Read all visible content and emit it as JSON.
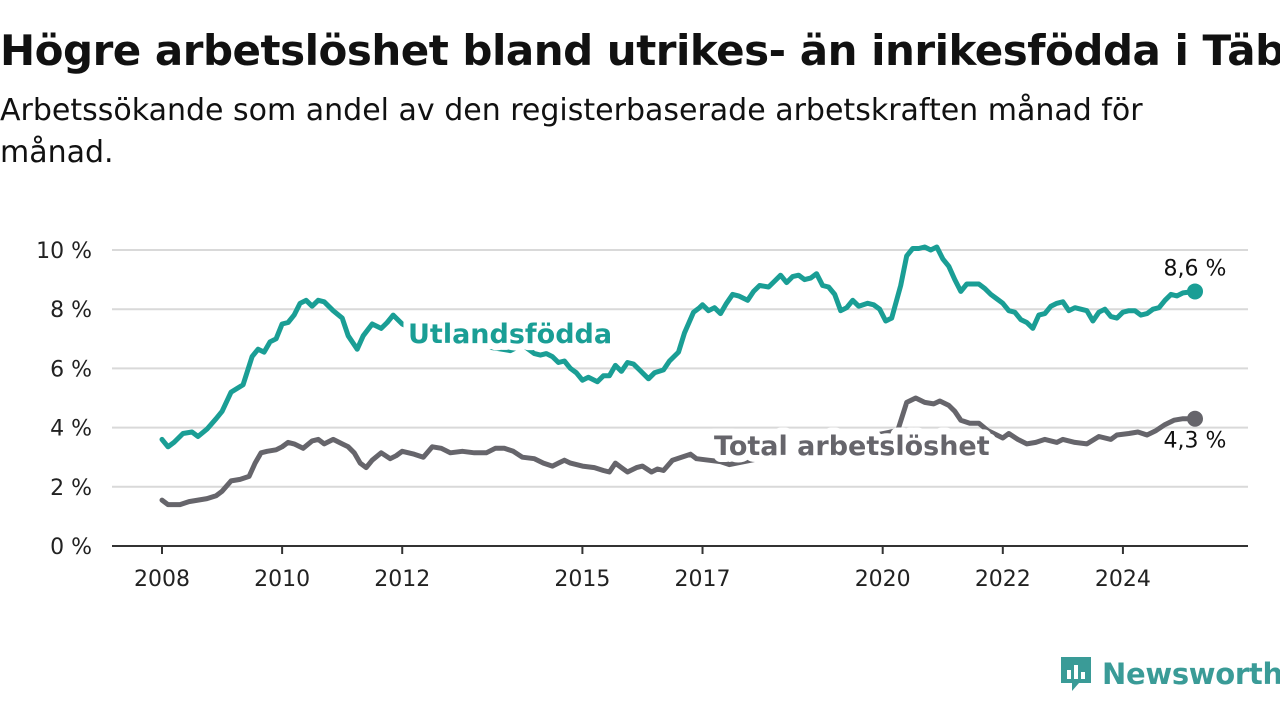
{
  "title": "Högre arbetslöshet bland utrikes- än inrikesfödda i Täby",
  "subtitle": "Arbetssökande som andel av den registerbaserade arbetskraften månad för månad.",
  "brand": {
    "name": "Newsworthy",
    "color": "#3a9b97"
  },
  "chart_data": {
    "type": "line",
    "title": "",
    "xlabel": "",
    "ylabel": "",
    "ylim": [
      0,
      10
    ],
    "xlim": [
      2008.0,
      2025.3
    ],
    "grid": true,
    "y_ticks": [
      {
        "value": 0,
        "label": "0 %"
      },
      {
        "value": 2,
        "label": "2 %"
      },
      {
        "value": 4,
        "label": "4 %"
      },
      {
        "value": 6,
        "label": "6 %"
      },
      {
        "value": 8,
        "label": "8 %"
      },
      {
        "value": 10,
        "label": "10 %"
      }
    ],
    "x_ticks": [
      {
        "value": 2008,
        "label": "2008"
      },
      {
        "value": 2010,
        "label": "2010"
      },
      {
        "value": 2012,
        "label": "2012"
      },
      {
        "value": 2015,
        "label": "2015"
      },
      {
        "value": 2017,
        "label": "2017"
      },
      {
        "value": 2020,
        "label": "2020"
      },
      {
        "value": 2022,
        "label": "2022"
      },
      {
        "value": 2024,
        "label": "2024"
      }
    ],
    "series": [
      {
        "name": "Utlandsfödda",
        "color": "#1a9e95",
        "end_label": "8,6 %",
        "points": [
          [
            2008.0,
            3.6
          ],
          [
            2008.1,
            3.35
          ],
          [
            2008.2,
            3.5
          ],
          [
            2008.35,
            3.8
          ],
          [
            2008.5,
            3.85
          ],
          [
            2008.6,
            3.7
          ],
          [
            2008.75,
            3.95
          ],
          [
            2008.9,
            4.3
          ],
          [
            2009.0,
            4.55
          ],
          [
            2009.15,
            5.2
          ],
          [
            2009.35,
            5.45
          ],
          [
            2009.5,
            6.4
          ],
          [
            2009.6,
            6.65
          ],
          [
            2009.7,
            6.55
          ],
          [
            2009.8,
            6.9
          ],
          [
            2009.9,
            7.0
          ],
          [
            2010.0,
            7.5
          ],
          [
            2010.1,
            7.55
          ],
          [
            2010.2,
            7.8
          ],
          [
            2010.3,
            8.2
          ],
          [
            2010.4,
            8.3
          ],
          [
            2010.5,
            8.1
          ],
          [
            2010.6,
            8.3
          ],
          [
            2010.7,
            8.25
          ],
          [
            2010.85,
            7.95
          ],
          [
            2011.0,
            7.7
          ],
          [
            2011.1,
            7.1
          ],
          [
            2011.25,
            6.65
          ],
          [
            2011.35,
            7.1
          ],
          [
            2011.5,
            7.5
          ],
          [
            2011.65,
            7.35
          ],
          [
            2011.75,
            7.55
          ],
          [
            2011.85,
            7.8
          ],
          [
            2012.0,
            7.5
          ],
          [
            2012.3,
            7.2
          ],
          [
            2012.6,
            6.9
          ],
          [
            2012.9,
            6.75
          ],
          [
            2013.2,
            6.8
          ],
          [
            2013.5,
            6.7
          ],
          [
            2013.8,
            6.6
          ],
          [
            2014.0,
            6.8
          ],
          [
            2014.2,
            6.5
          ],
          [
            2014.3,
            6.45
          ],
          [
            2014.4,
            6.5
          ],
          [
            2014.5,
            6.4
          ],
          [
            2014.6,
            6.2
          ],
          [
            2014.7,
            6.25
          ],
          [
            2014.8,
            6.0
          ],
          [
            2014.9,
            5.85
          ],
          [
            2015.0,
            5.6
          ],
          [
            2015.1,
            5.7
          ],
          [
            2015.25,
            5.55
          ],
          [
            2015.35,
            5.75
          ],
          [
            2015.45,
            5.75
          ],
          [
            2015.55,
            6.1
          ],
          [
            2015.65,
            5.9
          ],
          [
            2015.75,
            6.2
          ],
          [
            2015.85,
            6.15
          ],
          [
            2015.95,
            5.95
          ],
          [
            2016.1,
            5.65
          ],
          [
            2016.2,
            5.85
          ],
          [
            2016.35,
            5.95
          ],
          [
            2016.45,
            6.25
          ],
          [
            2016.6,
            6.55
          ],
          [
            2016.7,
            7.2
          ],
          [
            2016.85,
            7.9
          ],
          [
            2016.95,
            8.05
          ],
          [
            2017.0,
            8.15
          ],
          [
            2017.1,
            7.95
          ],
          [
            2017.2,
            8.05
          ],
          [
            2017.3,
            7.85
          ],
          [
            2017.4,
            8.2
          ],
          [
            2017.5,
            8.5
          ],
          [
            2017.6,
            8.45
          ],
          [
            2017.75,
            8.3
          ],
          [
            2017.85,
            8.6
          ],
          [
            2017.95,
            8.8
          ],
          [
            2018.1,
            8.75
          ],
          [
            2018.2,
            8.95
          ],
          [
            2018.3,
            9.15
          ],
          [
            2018.4,
            8.9
          ],
          [
            2018.5,
            9.1
          ],
          [
            2018.6,
            9.15
          ],
          [
            2018.7,
            9.0
          ],
          [
            2018.8,
            9.05
          ],
          [
            2018.9,
            9.2
          ],
          [
            2019.0,
            8.8
          ],
          [
            2019.1,
            8.75
          ],
          [
            2019.2,
            8.5
          ],
          [
            2019.3,
            7.95
          ],
          [
            2019.4,
            8.05
          ],
          [
            2019.5,
            8.3
          ],
          [
            2019.6,
            8.1
          ],
          [
            2019.75,
            8.2
          ],
          [
            2019.85,
            8.15
          ],
          [
            2019.95,
            8.0
          ],
          [
            2020.05,
            7.6
          ],
          [
            2020.15,
            7.7
          ],
          [
            2020.3,
            8.8
          ],
          [
            2020.4,
            9.8
          ],
          [
            2020.5,
            10.05
          ],
          [
            2020.6,
            10.05
          ],
          [
            2020.7,
            10.1
          ],
          [
            2020.8,
            10.0
          ],
          [
            2020.9,
            10.1
          ],
          [
            2021.0,
            9.7
          ],
          [
            2021.1,
            9.45
          ],
          [
            2021.2,
            9.0
          ],
          [
            2021.3,
            8.6
          ],
          [
            2021.4,
            8.85
          ],
          [
            2021.5,
            8.85
          ],
          [
            2021.6,
            8.85
          ],
          [
            2021.7,
            8.7
          ],
          [
            2021.8,
            8.5
          ],
          [
            2021.9,
            8.35
          ],
          [
            2022.0,
            8.2
          ],
          [
            2022.1,
            7.95
          ],
          [
            2022.2,
            7.9
          ],
          [
            2022.3,
            7.65
          ],
          [
            2022.4,
            7.55
          ],
          [
            2022.5,
            7.35
          ],
          [
            2022.6,
            7.8
          ],
          [
            2022.7,
            7.85
          ],
          [
            2022.8,
            8.1
          ],
          [
            2022.9,
            8.2
          ],
          [
            2023.0,
            8.25
          ],
          [
            2023.1,
            7.95
          ],
          [
            2023.2,
            8.05
          ],
          [
            2023.3,
            8.0
          ],
          [
            2023.4,
            7.95
          ],
          [
            2023.5,
            7.6
          ],
          [
            2023.6,
            7.9
          ],
          [
            2023.7,
            8.0
          ],
          [
            2023.8,
            7.75
          ],
          [
            2023.9,
            7.7
          ],
          [
            2024.0,
            7.9
          ],
          [
            2024.1,
            7.95
          ],
          [
            2024.2,
            7.95
          ],
          [
            2024.3,
            7.8
          ],
          [
            2024.4,
            7.85
          ],
          [
            2024.5,
            8.0
          ],
          [
            2024.6,
            8.05
          ],
          [
            2024.7,
            8.3
          ],
          [
            2024.8,
            8.5
          ],
          [
            2024.9,
            8.45
          ],
          [
            2025.0,
            8.55
          ],
          [
            2025.2,
            8.6
          ]
        ]
      },
      {
        "name": "Total arbetslöshet",
        "color": "#66656b",
        "end_label": "4,3 %",
        "points": [
          [
            2008.0,
            1.55
          ],
          [
            2008.1,
            1.4
          ],
          [
            2008.3,
            1.4
          ],
          [
            2008.45,
            1.5
          ],
          [
            2008.6,
            1.55
          ],
          [
            2008.75,
            1.6
          ],
          [
            2008.9,
            1.7
          ],
          [
            2009.0,
            1.85
          ],
          [
            2009.15,
            2.2
          ],
          [
            2009.3,
            2.25
          ],
          [
            2009.45,
            2.35
          ],
          [
            2009.55,
            2.8
          ],
          [
            2009.65,
            3.15
          ],
          [
            2009.75,
            3.2
          ],
          [
            2009.9,
            3.25
          ],
          [
            2010.0,
            3.35
          ],
          [
            2010.1,
            3.5
          ],
          [
            2010.2,
            3.45
          ],
          [
            2010.35,
            3.3
          ],
          [
            2010.5,
            3.55
          ],
          [
            2010.6,
            3.6
          ],
          [
            2010.7,
            3.45
          ],
          [
            2010.85,
            3.6
          ],
          [
            2011.0,
            3.45
          ],
          [
            2011.1,
            3.35
          ],
          [
            2011.2,
            3.15
          ],
          [
            2011.3,
            2.8
          ],
          [
            2011.4,
            2.65
          ],
          [
            2011.5,
            2.9
          ],
          [
            2011.65,
            3.15
          ],
          [
            2011.8,
            2.95
          ],
          [
            2011.9,
            3.05
          ],
          [
            2012.0,
            3.2
          ],
          [
            2012.2,
            3.1
          ],
          [
            2012.35,
            3.0
          ],
          [
            2012.5,
            3.35
          ],
          [
            2012.65,
            3.3
          ],
          [
            2012.8,
            3.15
          ],
          [
            2013.0,
            3.2
          ],
          [
            2013.2,
            3.15
          ],
          [
            2013.4,
            3.15
          ],
          [
            2013.55,
            3.3
          ],
          [
            2013.7,
            3.3
          ],
          [
            2013.85,
            3.2
          ],
          [
            2014.0,
            3.0
          ],
          [
            2014.2,
            2.95
          ],
          [
            2014.35,
            2.8
          ],
          [
            2014.5,
            2.7
          ],
          [
            2014.6,
            2.8
          ],
          [
            2014.7,
            2.9
          ],
          [
            2014.8,
            2.8
          ],
          [
            2015.0,
            2.7
          ],
          [
            2015.2,
            2.65
          ],
          [
            2015.35,
            2.55
          ],
          [
            2015.45,
            2.5
          ],
          [
            2015.55,
            2.8
          ],
          [
            2015.65,
            2.65
          ],
          [
            2015.75,
            2.5
          ],
          [
            2015.9,
            2.65
          ],
          [
            2016.0,
            2.7
          ],
          [
            2016.15,
            2.5
          ],
          [
            2016.25,
            2.6
          ],
          [
            2016.35,
            2.55
          ],
          [
            2016.5,
            2.9
          ],
          [
            2016.65,
            3.0
          ],
          [
            2016.8,
            3.1
          ],
          [
            2016.9,
            2.95
          ],
          [
            2017.1,
            2.9
          ],
          [
            2017.3,
            2.85
          ],
          [
            2017.45,
            2.75
          ],
          [
            2020.25,
            3.9
          ],
          [
            2020.4,
            4.85
          ],
          [
            2020.55,
            5.0
          ],
          [
            2020.7,
            4.85
          ],
          [
            2020.85,
            4.8
          ],
          [
            2020.95,
            4.9
          ],
          [
            2021.1,
            4.75
          ],
          [
            2021.2,
            4.55
          ],
          [
            2021.3,
            4.25
          ],
          [
            2021.45,
            4.15
          ],
          [
            2021.6,
            4.15
          ],
          [
            2021.75,
            3.9
          ],
          [
            2021.9,
            3.75
          ],
          [
            2022.0,
            3.65
          ],
          [
            2022.1,
            3.8
          ],
          [
            2022.25,
            3.6
          ],
          [
            2022.4,
            3.45
          ],
          [
            2022.55,
            3.5
          ],
          [
            2022.7,
            3.6
          ],
          [
            2022.9,
            3.5
          ],
          [
            2023.0,
            3.6
          ],
          [
            2023.2,
            3.5
          ],
          [
            2023.4,
            3.45
          ],
          [
            2023.6,
            3.7
          ],
          [
            2023.8,
            3.6
          ],
          [
            2023.9,
            3.75
          ],
          [
            2024.1,
            3.8
          ],
          [
            2024.25,
            3.85
          ],
          [
            2024.4,
            3.75
          ],
          [
            2024.55,
            3.9
          ],
          [
            2024.7,
            4.1
          ],
          [
            2024.85,
            4.25
          ],
          [
            2025.0,
            4.3
          ],
          [
            2025.2,
            4.3
          ]
        ]
      }
    ]
  }
}
